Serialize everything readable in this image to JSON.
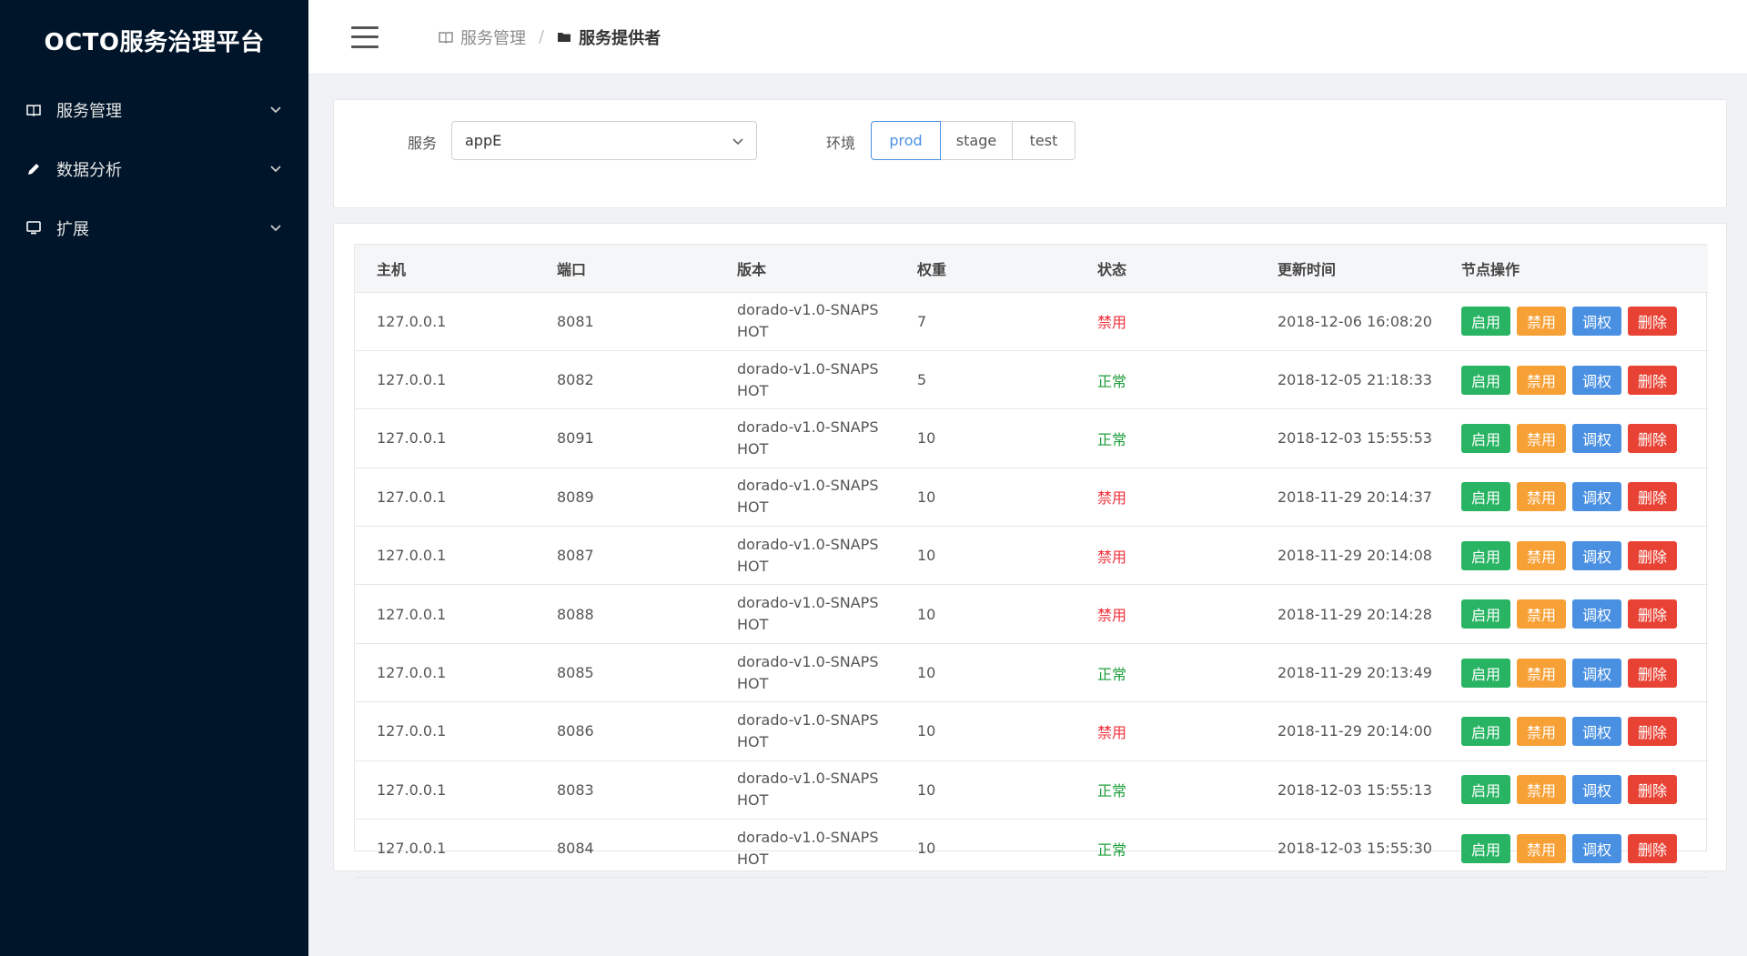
{
  "app": {
    "title": "OCTO服务治理平台"
  },
  "sidebar": {
    "items": [
      {
        "label": "服务管理",
        "icon": "book-icon"
      },
      {
        "label": "数据分析",
        "icon": "pencil-icon"
      },
      {
        "label": "扩展",
        "icon": "monitor-icon"
      }
    ]
  },
  "breadcrumb": {
    "parent": "服务管理",
    "current": "服务提供者"
  },
  "filter": {
    "service_label": "服务",
    "service_value": "appE",
    "env_label": "环境",
    "envs": [
      "prod",
      "stage",
      "test"
    ],
    "active_env": "prod"
  },
  "table": {
    "columns": [
      "主机",
      "端口",
      "版本",
      "权重",
      "状态",
      "更新时间",
      "节点操作"
    ],
    "actions": {
      "enable": "启用",
      "disable": "禁用",
      "weight": "调权",
      "delete": "删除"
    },
    "rows": [
      {
        "host": "127.0.0.1",
        "port": "8081",
        "version": "dorado-v1.0-SNAPSHOT",
        "weight": "7",
        "status": "禁用",
        "status_type": "off",
        "updated": "2018-12-06 16:08:20"
      },
      {
        "host": "127.0.0.1",
        "port": "8082",
        "version": "dorado-v1.0-SNAPSHOT",
        "weight": "5",
        "status": "正常",
        "status_type": "on",
        "updated": "2018-12-05 21:18:33"
      },
      {
        "host": "127.0.0.1",
        "port": "8091",
        "version": "dorado-v1.0-SNAPSHOT",
        "weight": "10",
        "status": "正常",
        "status_type": "on",
        "updated": "2018-12-03 15:55:53"
      },
      {
        "host": "127.0.0.1",
        "port": "8089",
        "version": "dorado-v1.0-SNAPSHOT",
        "weight": "10",
        "status": "禁用",
        "status_type": "off",
        "updated": "2018-11-29 20:14:37"
      },
      {
        "host": "127.0.0.1",
        "port": "8087",
        "version": "dorado-v1.0-SNAPSHOT",
        "weight": "10",
        "status": "禁用",
        "status_type": "off",
        "updated": "2018-11-29 20:14:08"
      },
      {
        "host": "127.0.0.1",
        "port": "8088",
        "version": "dorado-v1.0-SNAPSHOT",
        "weight": "10",
        "status": "禁用",
        "status_type": "off",
        "updated": "2018-11-29 20:14:28"
      },
      {
        "host": "127.0.0.1",
        "port": "8085",
        "version": "dorado-v1.0-SNAPSHOT",
        "weight": "10",
        "status": "正常",
        "status_type": "on",
        "updated": "2018-11-29 20:13:49"
      },
      {
        "host": "127.0.0.1",
        "port": "8086",
        "version": "dorado-v1.0-SNAPSHOT",
        "weight": "10",
        "status": "禁用",
        "status_type": "off",
        "updated": "2018-11-29 20:14:00"
      },
      {
        "host": "127.0.0.1",
        "port": "8083",
        "version": "dorado-v1.0-SNAPSHOT",
        "weight": "10",
        "status": "正常",
        "status_type": "on",
        "updated": "2018-12-03 15:55:13"
      },
      {
        "host": "127.0.0.1",
        "port": "8084",
        "version": "dorado-v1.0-SNAPSHOT",
        "weight": "10",
        "status": "正常",
        "status_type": "on",
        "updated": "2018-12-03 15:55:30"
      }
    ]
  },
  "colors": {
    "sidebar": "#001529",
    "primary": "#4a90e2",
    "success": "#28b463",
    "warning": "#f7a035",
    "danger": "#e84234"
  }
}
